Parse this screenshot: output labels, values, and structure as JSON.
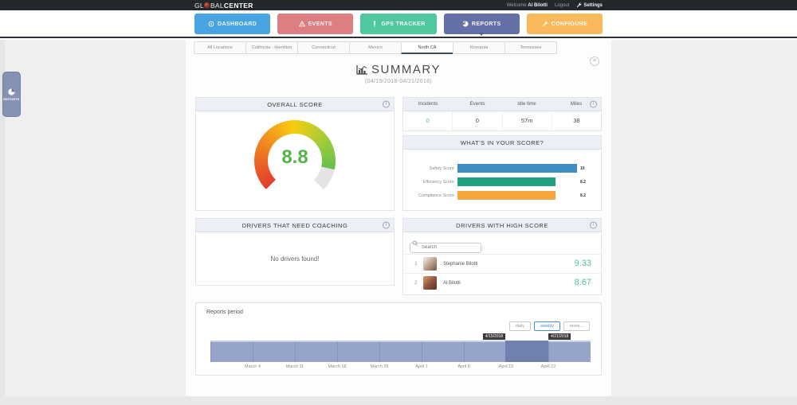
{
  "topbar": {
    "logo": {
      "prefix": "GL",
      "mid": "BAL",
      "bold": "CENTER"
    },
    "welcome_label": "Welcome",
    "username": "Al Bilotti",
    "logout_label": "Logout",
    "settings_label": "Settings"
  },
  "nav": {
    "items": [
      {
        "label": "DASHBOARD",
        "icon": "dashboard-icon",
        "color": "#47a4e0",
        "active": false
      },
      {
        "label": "EVENTS",
        "icon": "warning-icon",
        "color": "#dc7e82",
        "active": false
      },
      {
        "label": "GPS TRACKER",
        "icon": "gps-person-icon",
        "color": "#50c79e",
        "active": false
      },
      {
        "label": "REPORTS",
        "icon": "pie-chart-icon",
        "color": "#6571a6",
        "active": true
      },
      {
        "label": "CONFIGURE",
        "icon": "wrench-icon",
        "color": "#fab95a",
        "active": false
      }
    ]
  },
  "tabs": {
    "items": [
      "All Locations",
      "California - Hamilton",
      "Connecticut",
      "Mexico",
      "North CA",
      "Romania",
      "Tennessee"
    ],
    "active": "North CA",
    "active_index": 4
  },
  "page": {
    "title": "SUMMARY",
    "subtitle": "(04/15/2018-04/21/2018)"
  },
  "sidebar": {
    "label": "REPORTS"
  },
  "panels": {
    "overall": {
      "title": "OVERALL SCORE",
      "value": "8.8"
    },
    "stats": {
      "headers": [
        "Incidents",
        "Events",
        "Idle time",
        "Miles"
      ],
      "values": [
        "0",
        "0",
        "57m",
        "38"
      ]
    },
    "breakdown": {
      "title": "WHAT'S IN YOUR SCORE?"
    },
    "coaching": {
      "title": "DRIVERS THAT NEED COACHING",
      "empty_message": "No drivers found!"
    },
    "high_score": {
      "title": "DRIVERS WITH HIGH SCORE",
      "search_placeholder": "Search",
      "drivers": [
        {
          "rank": "1",
          "name": "Stephanie Bilotti",
          "score": "9.33"
        },
        {
          "rank": "2",
          "name": "Al Bilotti",
          "score": "8.67"
        }
      ]
    }
  },
  "reports_period": {
    "label": "Reports period",
    "buttons": [
      {
        "label": "daily",
        "active": false
      },
      {
        "label": "weekly",
        "active": true
      },
      {
        "label": "more...",
        "active": false
      }
    ],
    "tooltip_start": "4/15/2018",
    "tooltip_end": "4/21/2018",
    "axis": [
      "March 4",
      "March 11",
      "March 18",
      "March 25",
      "April 1",
      "April 8",
      "April 15",
      "April 22"
    ]
  },
  "colors": {
    "incidents_value": "#63b0a4",
    "score_value": "#4fbfa1",
    "gauge_value": "#56b44a",
    "active_button_blue": "#4a8fd3"
  },
  "chart_data": [
    {
      "type": "gauge",
      "title": "OVERALL SCORE",
      "value": 8.8,
      "min": 0,
      "max": 10,
      "arc_degrees": 270,
      "colors": [
        "#e23b2e",
        "#f3901d",
        "#f6ce10",
        "#9acb3c",
        "#67bf4b"
      ],
      "empty_color": "#e4e4e4"
    },
    {
      "type": "bar",
      "title": "WHAT'S IN YOUR SCORE?",
      "orientation": "horizontal",
      "categories": [
        "Safety Score",
        "Efficiency Score",
        "Compliance Score"
      ],
      "values": [
        10,
        8.2,
        8.2
      ],
      "value_labels": [
        "10",
        "8.2",
        "8.2"
      ],
      "colors": [
        "#3e8ec4",
        "#21a183",
        "#f4a53d"
      ],
      "xlim": [
        0,
        10
      ],
      "legend": false,
      "grid": false
    },
    {
      "type": "timeline",
      "title": "Reports period",
      "x_labels": [
        "March 4",
        "March 11",
        "March 18",
        "March 25",
        "April 1",
        "April 8",
        "April 15",
        "April 22"
      ],
      "band_color": "#97a4c9",
      "selection_color": "#7081ae",
      "selection": {
        "start_label": "4/15/2018",
        "end_label": "4/21/2018",
        "start_pct": 77.6,
        "end_pct": 88.9
      }
    }
  ]
}
